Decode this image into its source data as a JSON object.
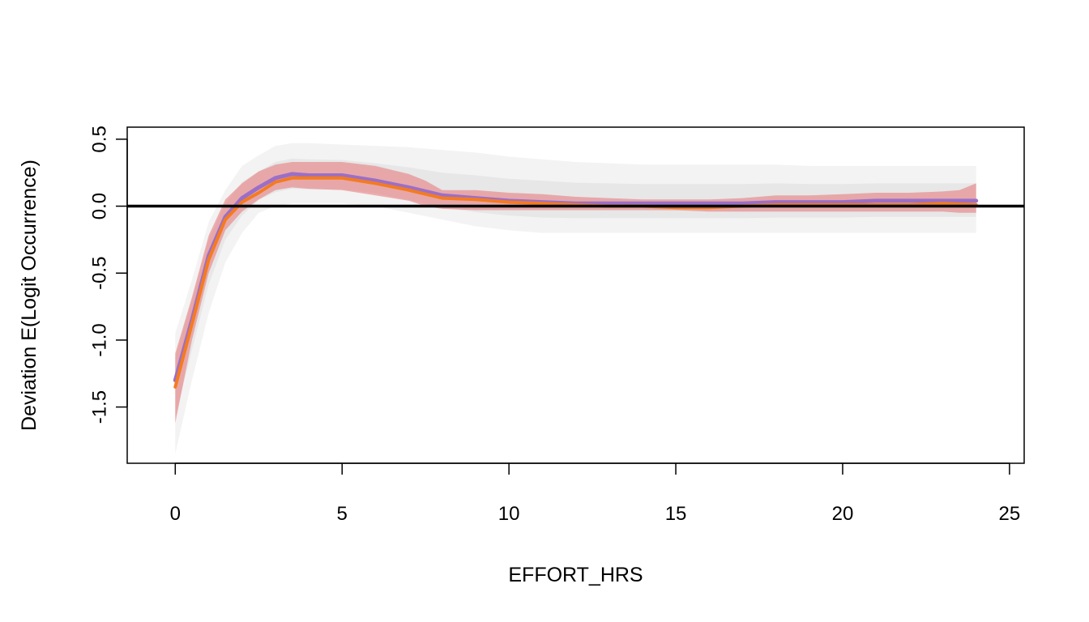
{
  "chart_data": {
    "type": "line",
    "title": "",
    "xlabel": "EFFORT_HRS",
    "ylabel": "Deviation E(Logit Occurrence)",
    "xlim": [
      -1.44,
      25.44
    ],
    "ylim": [
      -1.92,
      0.59
    ],
    "x_ticks": [
      0,
      5,
      10,
      15,
      20,
      25
    ],
    "x_tick_labels": [
      "0",
      "5",
      "10",
      "15",
      "20",
      "25"
    ],
    "y_ticks": [
      -1.5,
      -1.0,
      -0.5,
      0.0,
      0.5
    ],
    "y_tick_labels": [
      "-1.5",
      "-1.0",
      "-0.5",
      "0.0",
      "0.5"
    ],
    "grid": false,
    "reference_line": {
      "y": 0,
      "color": "#000000"
    },
    "colors": {
      "bootstrap": "#bdbdbd",
      "ribbon": "#e8686b",
      "median": "#9b6fc7",
      "mean": "#f47b20"
    },
    "series": [
      {
        "role": "bootstrap-band",
        "x": [
          0,
          0.5,
          1,
          1.5,
          2,
          2.5,
          3,
          3.5,
          4,
          5,
          6,
          7,
          8,
          9,
          10,
          11,
          12,
          13,
          14,
          15,
          16,
          17,
          18,
          19,
          20,
          21,
          22,
          23,
          24
        ],
        "lower": [
          -1.85,
          -1.3,
          -0.8,
          -0.42,
          -0.2,
          -0.05,
          0.0,
          0.02,
          0.02,
          0.02,
          0.0,
          -0.05,
          -0.1,
          -0.15,
          -0.18,
          -0.2,
          -0.2,
          -0.2,
          -0.2,
          -0.2,
          -0.2,
          -0.2,
          -0.2,
          -0.2,
          -0.2,
          -0.2,
          -0.2,
          -0.2,
          -0.2
        ],
        "upper": [
          -0.95,
          -0.55,
          -0.12,
          0.12,
          0.3,
          0.38,
          0.45,
          0.47,
          0.47,
          0.46,
          0.45,
          0.44,
          0.42,
          0.4,
          0.37,
          0.35,
          0.33,
          0.32,
          0.31,
          0.31,
          0.31,
          0.31,
          0.31,
          0.3,
          0.3,
          0.3,
          0.3,
          0.3,
          0.3
        ]
      },
      {
        "role": "confidence-ribbon",
        "x": [
          0,
          0.5,
          1,
          1.5,
          2,
          2.5,
          3,
          3.5,
          4,
          5,
          6,
          7,
          7.5,
          8,
          9,
          10,
          11,
          12,
          13,
          14,
          15,
          16,
          17,
          18,
          19,
          20,
          21,
          22,
          23,
          23.5,
          24
        ],
        "lower": [
          -1.62,
          -1.0,
          -0.5,
          -0.18,
          -0.04,
          0.05,
          0.12,
          0.14,
          0.13,
          0.12,
          0.08,
          0.04,
          0.0,
          -0.02,
          -0.03,
          -0.03,
          -0.03,
          -0.03,
          -0.03,
          -0.03,
          -0.03,
          -0.04,
          -0.04,
          -0.04,
          -0.04,
          -0.04,
          -0.04,
          -0.04,
          -0.04,
          -0.05,
          -0.05
        ],
        "upper": [
          -1.1,
          -0.68,
          -0.22,
          0.05,
          0.17,
          0.26,
          0.31,
          0.33,
          0.33,
          0.33,
          0.3,
          0.24,
          0.19,
          0.12,
          0.12,
          0.1,
          0.09,
          0.07,
          0.06,
          0.05,
          0.05,
          0.05,
          0.06,
          0.08,
          0.08,
          0.09,
          0.1,
          0.1,
          0.11,
          0.12,
          0.17
        ]
      },
      {
        "role": "median-line",
        "x": [
          0,
          0.5,
          1,
          1.5,
          2,
          2.5,
          3,
          3.5,
          4,
          5,
          6,
          7,
          8,
          9,
          10,
          11,
          12,
          13,
          14,
          15,
          16,
          17,
          18,
          19,
          20,
          21,
          22,
          23,
          24
        ],
        "values": [
          -1.3,
          -0.85,
          -0.37,
          -0.08,
          0.06,
          0.14,
          0.21,
          0.24,
          0.23,
          0.23,
          0.19,
          0.14,
          0.08,
          0.06,
          0.04,
          0.03,
          0.02,
          0.02,
          0.02,
          0.02,
          0.02,
          0.02,
          0.03,
          0.03,
          0.03,
          0.04,
          0.04,
          0.04,
          0.04
        ]
      },
      {
        "role": "mean-line",
        "x": [
          0,
          0.5,
          1,
          1.5,
          2,
          2.5,
          3,
          3.5,
          4,
          5,
          6,
          7,
          8,
          9,
          10,
          11,
          12,
          13,
          14,
          15,
          16,
          17,
          18,
          19,
          20,
          21,
          22,
          23,
          24
        ],
        "values": [
          -1.35,
          -0.88,
          -0.4,
          -0.1,
          0.03,
          0.1,
          0.18,
          0.21,
          0.21,
          0.21,
          0.17,
          0.12,
          0.06,
          0.05,
          0.03,
          0.02,
          0.01,
          0.0,
          0.0,
          -0.01,
          -0.01,
          0.0,
          0.01,
          0.01,
          0.01,
          0.01,
          0.01,
          0.02,
          0.01
        ]
      }
    ]
  }
}
